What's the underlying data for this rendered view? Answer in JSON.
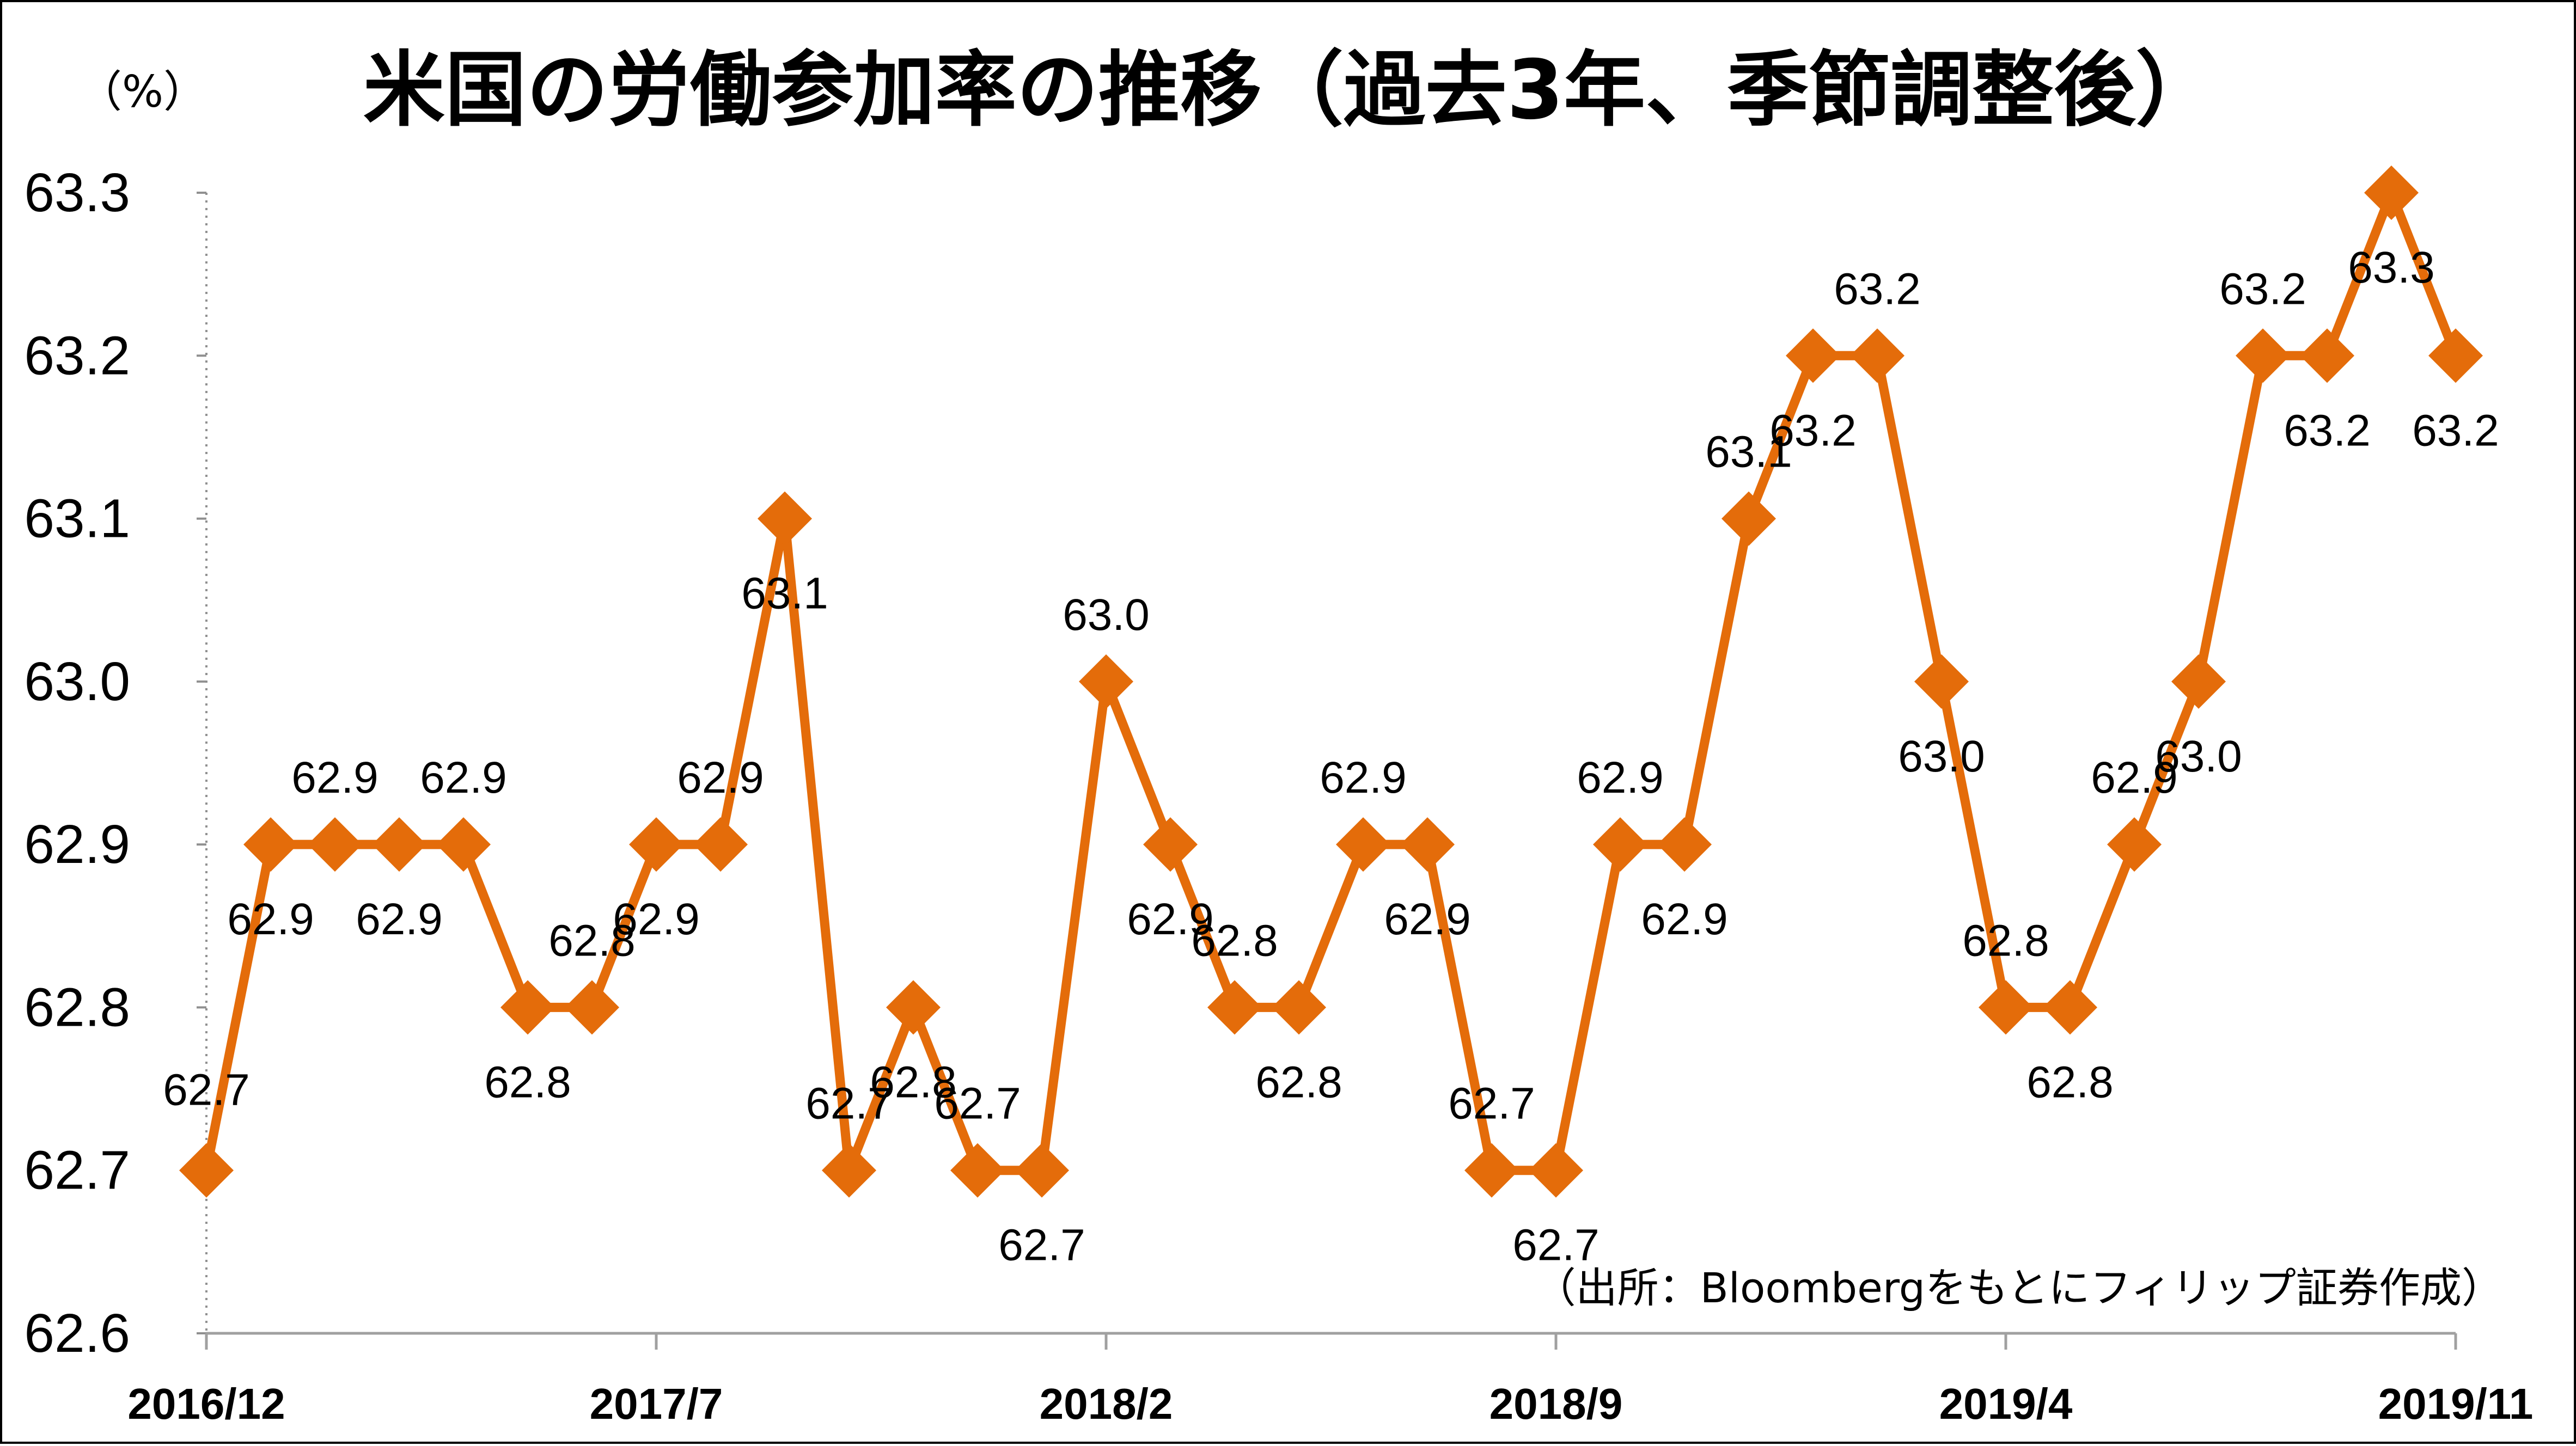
{
  "chart_data": {
    "type": "line",
    "title": "米国の労働参加率の推移（過去3年、季節調整後）",
    "ylabel": "（%）",
    "source": "（出所：Bloombergをもとにフィリップ証券作成）",
    "ylim": [
      62.6,
      63.3
    ],
    "yticks": [
      "62.6",
      "62.7",
      "62.8",
      "62.9",
      "63.0",
      "63.1",
      "63.2",
      "63.3"
    ],
    "x_tick_labels": [
      "2016/12",
      "2017/7",
      "2018/2",
      "2018/9",
      "2019/4",
      "2019/11"
    ],
    "grid": false,
    "legend": "none",
    "color": "#E46C0A",
    "series": [
      {
        "x": [
          "2016/12",
          "2017/1",
          "2017/2",
          "2017/3",
          "2017/4",
          "2017/5",
          "2017/6",
          "2017/7",
          "2017/8",
          "2017/9",
          "2017/10",
          "2017/11",
          "2017/12",
          "2018/1",
          "2018/2",
          "2018/3",
          "2018/4",
          "2018/5",
          "2018/6",
          "2018/7",
          "2018/8",
          "2018/9",
          "2018/10",
          "2018/11",
          "2018/12",
          "2019/1",
          "2019/2",
          "2019/3",
          "2019/4",
          "2019/5",
          "2019/6",
          "2019/7",
          "2019/8",
          "2019/9",
          "2019/10",
          "2019/11"
        ],
        "values": [
          62.7,
          62.9,
          62.9,
          62.9,
          62.9,
          62.8,
          62.8,
          62.9,
          62.9,
          63.1,
          62.7,
          62.8,
          62.7,
          62.7,
          63.0,
          62.9,
          62.8,
          62.8,
          62.9,
          62.9,
          62.7,
          62.7,
          62.9,
          62.9,
          63.1,
          63.2,
          63.2,
          63.0,
          62.8,
          62.8,
          62.9,
          63.0,
          63.2,
          63.2,
          63.3,
          63.2
        ],
        "labels": [
          "62.7",
          "62.9",
          "62.9",
          "62.9",
          "62.9",
          "62.8",
          "62.8",
          "62.9",
          "62.9",
          "63.1",
          "62.7",
          "62.8",
          "62.7",
          "62.7",
          "63.0",
          "62.9",
          "62.8",
          "62.8",
          "62.9",
          "62.9",
          "62.7",
          "62.7",
          "62.9",
          "62.9",
          "63.1",
          "63.2",
          "63.2",
          "63.0",
          "62.8",
          "62.8",
          "62.9",
          "63.0",
          "63.2",
          "63.2",
          "63.3",
          "63.2"
        ]
      }
    ]
  }
}
